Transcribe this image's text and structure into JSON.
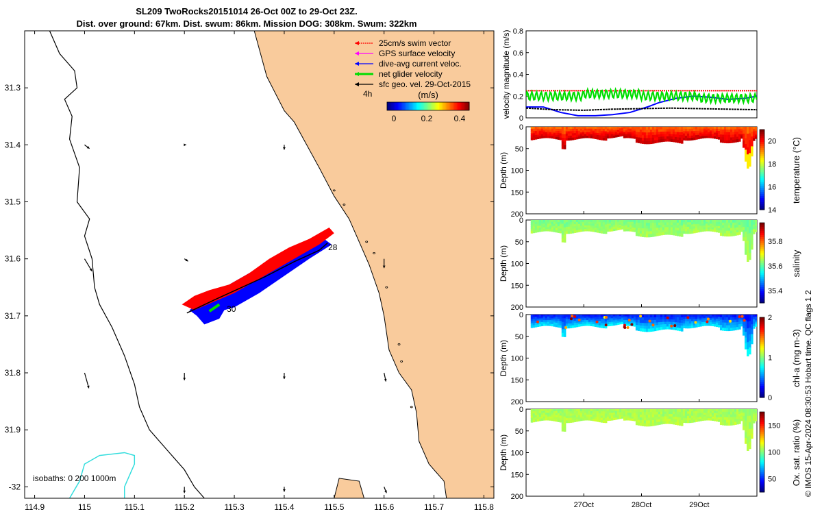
{
  "header": {
    "title_line1": "SL209 TwoRocks20151014 26-Oct 00Z to 29-Oct 23Z.",
    "title_line2": "Dist. over ground: 67km. Dist. swum: 86km. Mission DOG: 308km. Swum: 322km"
  },
  "copyright": "© IMOS 15-Apr-2024 08:30:53 Hobart time. QC flags 1  2",
  "colors": {
    "land": "#f9cb9c",
    "swim": "#ff0000",
    "gps": "#ff00ff",
    "dive_avg": "#0000ff",
    "net": "#00dd00",
    "geo": "#000000",
    "isobath200": "#33dddd"
  },
  "chart_data": [
    {
      "type": "map",
      "name": "glider-track-map",
      "xlim": [
        114.88,
        115.82
      ],
      "ylim": [
        -32.02,
        -31.2
      ],
      "x_ticks": [
        114.9,
        115,
        115.1,
        115.2,
        115.3,
        115.4,
        115.5,
        115.6,
        115.7,
        115.8
      ],
      "x_tick_labels": [
        "114.9",
        "115",
        "115.1",
        "115.2",
        "115.3",
        "115.4",
        "115.5",
        "115.6",
        "115.7",
        "115.8"
      ],
      "y_ticks": [
        -31.3,
        -31.4,
        -31.5,
        -31.6,
        -31.7,
        -31.8,
        -31.9,
        -32
      ],
      "y_tick_labels": [
        "31.3",
        "31.4",
        "31.5",
        "31.6",
        "31.7",
        "31.8",
        "31.9",
        "-32"
      ],
      "legend": [
        {
          "key": "swim",
          "label": "25cm/s swim vector"
        },
        {
          "key": "gps",
          "label": "GPS surface velocity"
        },
        {
          "key": "dive_avg",
          "label": "dive-avg current veloc."
        },
        {
          "key": "net",
          "label": "net glider velocity"
        },
        {
          "key": "geo",
          "label": "sfc geo. vel. 29-Oct-2015"
        }
      ],
      "legend_scale_label": "4h",
      "colorbar": {
        "label": "(m/s)",
        "ticks": [
          0,
          0.2,
          0.4
        ],
        "tick_labels": [
          "0",
          "0.2",
          "0.4"
        ],
        "range": [
          0,
          0.5
        ]
      },
      "isobaths_label": "isobaths: 0    200  1000m",
      "track": [
        [
          115.205,
          -31.695
        ],
        [
          115.26,
          -31.672
        ],
        [
          115.31,
          -31.652
        ],
        [
          115.36,
          -31.632
        ],
        [
          115.42,
          -31.605
        ],
        [
          115.47,
          -31.585
        ],
        [
          115.487,
          -31.572
        ]
      ],
      "day_labels": [
        {
          "lon": 115.488,
          "lat": -31.585,
          "text": "28"
        },
        {
          "lon": 115.285,
          "lat": -31.693,
          "text": "30"
        }
      ],
      "geo_arrows": [
        {
          "lon": 115.0,
          "lat": -31.4,
          "u": 0.008,
          "v": -0.006
        },
        {
          "lon": 115.2,
          "lat": -31.4,
          "u": 0.003,
          "v": 0.0
        },
        {
          "lon": 115.4,
          "lat": -31.4,
          "u": 0.0,
          "v": -0.008
        },
        {
          "lon": 115.0,
          "lat": -31.6,
          "u": 0.012,
          "v": -0.02
        },
        {
          "lon": 115.2,
          "lat": -31.6,
          "u": 0.006,
          "v": -0.004
        },
        {
          "lon": 115.6,
          "lat": -31.6,
          "u": 0.0,
          "v": -0.015
        },
        {
          "lon": 115.0,
          "lat": -31.8,
          "u": 0.007,
          "v": -0.025
        },
        {
          "lon": 115.2,
          "lat": -31.8,
          "u": 0.0,
          "v": -0.012
        },
        {
          "lon": 115.4,
          "lat": -31.8,
          "u": 0.0,
          "v": -0.01
        },
        {
          "lon": 115.6,
          "lat": -31.8,
          "u": 0.003,
          "v": -0.014
        },
        {
          "lon": 115.2,
          "lat": -32.0,
          "u": 0.0,
          "v": -0.01
        },
        {
          "lon": 115.4,
          "lat": -32.0,
          "u": 0.0,
          "v": -0.008
        },
        {
          "lon": 115.6,
          "lat": -32.0,
          "u": 0.004,
          "v": -0.01
        }
      ]
    },
    {
      "type": "line",
      "name": "velocity-magnitude",
      "ylabel": "velocity magnitude (m/s)",
      "ylim": [
        0,
        0.8
      ],
      "y_ticks": [
        0,
        0.2,
        0.4,
        0.6,
        0.8
      ],
      "y_tick_labels": [
        "0",
        "0.2",
        "0.4",
        "0.6",
        "0.8"
      ],
      "xlim": [
        26.0,
        30.0
      ],
      "series": [
        {
          "name": "swim",
          "x": [
            26.0,
            30.0
          ],
          "values": [
            0.25,
            0.25
          ]
        },
        {
          "name": "dive-avg",
          "x": [
            26.0,
            26.3,
            26.6,
            26.9,
            27.2,
            27.5,
            27.8,
            28.1,
            28.3,
            28.6,
            28.9,
            29.2,
            29.5,
            29.8,
            30.0
          ],
          "values": [
            0.1,
            0.1,
            0.05,
            0.02,
            0.02,
            0.03,
            0.05,
            0.1,
            0.14,
            0.18,
            0.2,
            0.19,
            0.17,
            0.18,
            0.2
          ]
        },
        {
          "name": "geostrophic",
          "x": [
            26.0,
            26.5,
            27.0,
            27.5,
            28.0,
            28.5,
            29.0,
            29.5,
            30.0
          ],
          "values": [
            0.09,
            0.075,
            0.07,
            0.08,
            0.085,
            0.09,
            0.085,
            0.08,
            0.075
          ]
        },
        {
          "name": "net",
          "x": [
            26.0,
            27.0,
            28.0,
            29.0,
            30.0
          ],
          "values": [
            0.2,
            0.22,
            0.2,
            0.18,
            0.2
          ]
        }
      ]
    },
    {
      "type": "heatmap",
      "name": "temperature-section",
      "ylabel": "Depth (m)",
      "clabel": "temperature (°C)",
      "ylim": [
        0,
        200
      ],
      "y_ticks": [
        0,
        50,
        100,
        150,
        200
      ],
      "y_tick_labels": [
        "0",
        "50",
        "100",
        "150",
        "200"
      ],
      "crange": [
        14,
        21
      ],
      "c_ticks": [
        14,
        16,
        18,
        20
      ],
      "c_tick_labels": [
        "14",
        "16",
        "18",
        "20"
      ],
      "shallow_value": 19.5,
      "deep_value": 20.5
    },
    {
      "type": "heatmap",
      "name": "salinity-section",
      "ylabel": "Depth (m)",
      "clabel": "salinity",
      "ylim": [
        0,
        200
      ],
      "y_ticks": [
        0,
        50,
        100,
        150,
        200
      ],
      "y_tick_labels": [
        "0",
        "50",
        "100",
        "150",
        "200"
      ],
      "crange": [
        35.3,
        35.95
      ],
      "c_ticks": [
        35.4,
        35.6,
        35.8
      ],
      "c_tick_labels": [
        "35.4",
        "35.6",
        "35.8"
      ],
      "shallow_value": 35.62,
      "deep_value": 35.65
    },
    {
      "type": "heatmap",
      "name": "chla-section",
      "ylabel": "Depth (m)",
      "clabel": "chl-a (mg m-3)",
      "ylim": [
        0,
        200
      ],
      "y_ticks": [
        0,
        50,
        100,
        150,
        200
      ],
      "y_tick_labels": [
        "0",
        "50",
        "100",
        "150",
        "200"
      ],
      "crange": [
        0,
        2
      ],
      "c_ticks": [
        0,
        1,
        2
      ],
      "c_tick_labels": [
        "0",
        "1",
        "2"
      ],
      "shallow_value": 0.3,
      "deep_value": 0.7
    },
    {
      "type": "heatmap",
      "name": "oxygen-section",
      "ylabel": "Depth (m)",
      "clabel": "Ox. sat. ratio (%)",
      "ylim": [
        0,
        200
      ],
      "y_ticks": [
        0,
        50,
        100,
        150,
        200
      ],
      "y_tick_labels": [
        "0",
        "50",
        "100",
        "150",
        "200"
      ],
      "crange": [
        25,
        175
      ],
      "c_ticks": [
        50,
        100,
        150
      ],
      "c_tick_labels": [
        "50",
        "100",
        "150"
      ],
      "shallow_value": 105,
      "deep_value": 108,
      "x_ticks": [
        27,
        28,
        29
      ],
      "x_tick_labels": [
        "27Oct",
        "28Oct",
        "29Oct"
      ]
    }
  ]
}
